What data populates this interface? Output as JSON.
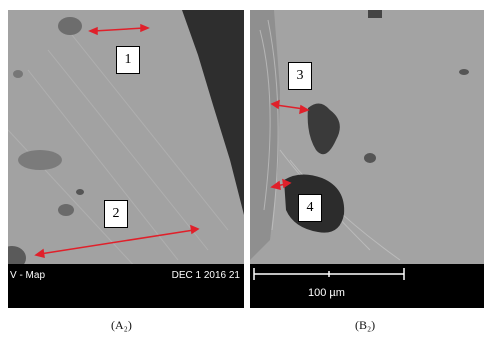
{
  "panel_a": {
    "regions": [
      "1",
      "2"
    ],
    "info_left": "V - Map",
    "info_right": "DEC 1 2016 21",
    "caption": "(A₂)"
  },
  "panel_b": {
    "regions": [
      "3",
      "4"
    ],
    "scale_bar": "100 µm",
    "caption": "(B₂)"
  },
  "colors": {
    "arrow": "#e0202a",
    "background_gray": "#9a9a9a",
    "dark_region": "#2b2b2b"
  }
}
